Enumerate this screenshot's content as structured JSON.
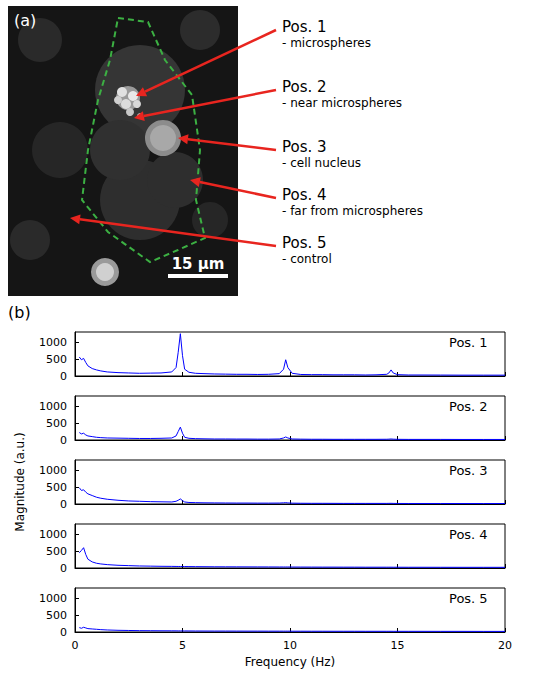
{
  "image_panel": {
    "letter": "(a)",
    "scale_bar": "15 µm",
    "positions": [
      {
        "label": "Pos. 1",
        "note": "- microspheres"
      },
      {
        "label": "Pos. 2",
        "note": "- near microspheres"
      },
      {
        "label": "Pos. 3",
        "note": "- cell nucleus"
      },
      {
        "label": "Pos. 4",
        "note": "- far from microspheres"
      },
      {
        "label": "Pos. 5",
        "note": "- control"
      }
    ]
  },
  "chart_panel": {
    "letter": "(b)",
    "x_label": "Frequency (Hz)",
    "y_label": "Magnitude (a.u.)"
  },
  "chart_data": [
    {
      "type": "line",
      "title": "Pos. 1",
      "color": "#0000ff",
      "grid": false,
      "tick_labels": "y",
      "xlim": [
        0,
        20
      ],
      "xticks": [
        0,
        5,
        10,
        15,
        20
      ],
      "ylim": [
        0,
        1300
      ],
      "yticks": [
        0,
        500,
        1000
      ],
      "x": [
        0.2,
        0.3,
        0.4,
        0.5,
        0.6,
        0.8,
        1,
        1.2,
        1.5,
        2,
        2.5,
        3,
        3.5,
        4,
        4.5,
        4.7,
        4.8,
        4.9,
        5.0,
        5.1,
        5.3,
        5.6,
        6,
        6.5,
        7,
        7.5,
        8,
        8.5,
        9,
        9.5,
        9.7,
        9.8,
        9.9,
        10.1,
        10.5,
        11,
        11.5,
        12,
        12.5,
        13,
        13.5,
        14,
        14.5,
        14.6,
        14.7,
        14.8,
        15,
        15.5,
        16,
        17,
        18,
        19,
        20
      ],
      "values": [
        560,
        480,
        520,
        400,
        300,
        220,
        180,
        150,
        120,
        100,
        90,
        80,
        85,
        90,
        120,
        250,
        700,
        1250,
        600,
        200,
        110,
        80,
        70,
        60,
        55,
        50,
        50,
        45,
        50,
        70,
        200,
        480,
        250,
        80,
        45,
        40,
        40,
        35,
        35,
        35,
        30,
        35,
        50,
        90,
        180,
        90,
        40,
        30,
        30,
        28,
        25,
        25,
        25
      ]
    },
    {
      "type": "line",
      "title": "Pos. 2",
      "color": "#0000ff",
      "grid": false,
      "tick_labels": "y",
      "xlim": [
        0,
        20
      ],
      "xticks": [
        0,
        5,
        10,
        15,
        20
      ],
      "ylim": [
        0,
        1300
      ],
      "yticks": [
        0,
        500,
        1000
      ],
      "x": [
        0.2,
        0.3,
        0.4,
        0.5,
        0.6,
        0.8,
        1,
        1.2,
        1.5,
        2,
        2.5,
        3,
        3.5,
        4,
        4.5,
        4.7,
        4.8,
        4.9,
        5.0,
        5.1,
        5.3,
        5.6,
        6,
        6.5,
        7,
        7.5,
        8,
        8.5,
        9,
        9.5,
        9.7,
        9.8,
        9.9,
        10.1,
        10.5,
        11,
        11.5,
        12,
        12.5,
        13,
        13.5,
        14,
        14.5,
        14.6,
        14.7,
        14.8,
        15,
        15.5,
        16,
        17,
        18,
        19,
        20
      ],
      "values": [
        220,
        180,
        200,
        150,
        120,
        100,
        80,
        70,
        60,
        55,
        50,
        45,
        45,
        50,
        60,
        120,
        250,
        380,
        200,
        80,
        50,
        40,
        35,
        30,
        30,
        28,
        28,
        25,
        25,
        30,
        60,
        90,
        60,
        30,
        25,
        22,
        22,
        20,
        20,
        20,
        20,
        20,
        22,
        25,
        30,
        25,
        20,
        18,
        18,
        18,
        16,
        16,
        16
      ]
    },
    {
      "type": "line",
      "title": "Pos. 3",
      "color": "#0000ff",
      "grid": false,
      "tick_labels": "y",
      "xlim": [
        0,
        20
      ],
      "xticks": [
        0,
        5,
        10,
        15,
        20
      ],
      "ylim": [
        0,
        1300
      ],
      "yticks": [
        0,
        500,
        1000
      ],
      "x": [
        0.2,
        0.3,
        0.4,
        0.5,
        0.6,
        0.8,
        1,
        1.2,
        1.5,
        2,
        2.5,
        3,
        3.5,
        4,
        4.5,
        4.7,
        4.8,
        4.9,
        5.0,
        5.1,
        5.3,
        5.6,
        6,
        6.5,
        7,
        7.5,
        8,
        8.5,
        9,
        9.5,
        9.7,
        9.8,
        9.9,
        10.1,
        10.5,
        11,
        11.5,
        12,
        12.5,
        13,
        13.5,
        14,
        14.5,
        14.6,
        14.7,
        14.8,
        15,
        15.5,
        16,
        17,
        18,
        19,
        20
      ],
      "values": [
        480,
        400,
        420,
        350,
        300,
        250,
        200,
        170,
        140,
        110,
        90,
        80,
        70,
        65,
        60,
        80,
        110,
        150,
        100,
        60,
        45,
        40,
        35,
        32,
        30,
        28,
        28,
        26,
        26,
        28,
        35,
        40,
        32,
        25,
        22,
        20,
        20,
        19,
        18,
        18,
        18,
        18,
        18,
        19,
        20,
        18,
        16,
        15,
        15,
        15,
        14,
        14,
        14
      ]
    },
    {
      "type": "line",
      "title": "Pos. 4",
      "color": "#0000ff",
      "grid": false,
      "tick_labels": "y",
      "xlim": [
        0,
        20
      ],
      "xticks": [
        0,
        5,
        10,
        15,
        20
      ],
      "ylim": [
        0,
        1300
      ],
      "yticks": [
        0,
        500,
        1000
      ],
      "x": [
        0.2,
        0.3,
        0.4,
        0.5,
        0.6,
        0.8,
        1,
        1.2,
        1.5,
        2,
        2.5,
        3,
        3.5,
        4,
        4.5,
        4.7,
        4.8,
        4.9,
        5.0,
        5.1,
        5.3,
        5.6,
        6,
        6.5,
        7,
        7.5,
        8,
        8.5,
        9,
        9.5,
        9.7,
        9.8,
        9.9,
        10.1,
        10.5,
        11,
        11.5,
        12,
        12.5,
        13,
        13.5,
        14,
        14.5,
        14.6,
        14.7,
        14.8,
        15,
        15.5,
        16,
        17,
        18,
        19,
        20
      ],
      "values": [
        450,
        520,
        600,
        400,
        260,
        180,
        140,
        120,
        100,
        80,
        70,
        60,
        55,
        50,
        48,
        46,
        45,
        45,
        44,
        43,
        42,
        40,
        38,
        36,
        35,
        34,
        33,
        32,
        31,
        30,
        30,
        30,
        30,
        29,
        28,
        27,
        26,
        26,
        25,
        25,
        24,
        24,
        24,
        24,
        24,
        23,
        23,
        22,
        22,
        21,
        20,
        20,
        20
      ]
    },
    {
      "type": "line",
      "title": "Pos. 5",
      "color": "#0000ff",
      "grid": false,
      "xlim": [
        0,
        20
      ],
      "xticks": [
        0,
        5,
        10,
        15,
        20
      ],
      "ylim": [
        0,
        1300
      ],
      "yticks": [
        0,
        500,
        1000
      ],
      "x": [
        0.2,
        0.3,
        0.4,
        0.5,
        0.6,
        0.8,
        1,
        1.2,
        1.5,
        2,
        2.5,
        3,
        3.5,
        4,
        4.5,
        4.7,
        4.8,
        4.9,
        5.0,
        5.1,
        5.3,
        5.6,
        6,
        6.5,
        7,
        7.5,
        8,
        8.5,
        9,
        9.5,
        9.7,
        9.8,
        9.9,
        10.1,
        10.5,
        11,
        11.5,
        12,
        12.5,
        13,
        13.5,
        14,
        14.5,
        14.6,
        14.7,
        14.8,
        15,
        15.5,
        16,
        17,
        18,
        19,
        20
      ],
      "values": [
        130,
        110,
        140,
        120,
        100,
        90,
        80,
        70,
        60,
        50,
        45,
        40,
        38,
        36,
        35,
        34,
        33,
        33,
        32,
        32,
        31,
        30,
        29,
        28,
        28,
        27,
        26,
        26,
        25,
        25,
        25,
        25,
        25,
        24,
        24,
        23,
        23,
        22,
        22,
        22,
        21,
        21,
        21,
        21,
        21,
        20,
        20,
        20,
        20,
        19,
        19,
        18,
        18
      ]
    }
  ]
}
